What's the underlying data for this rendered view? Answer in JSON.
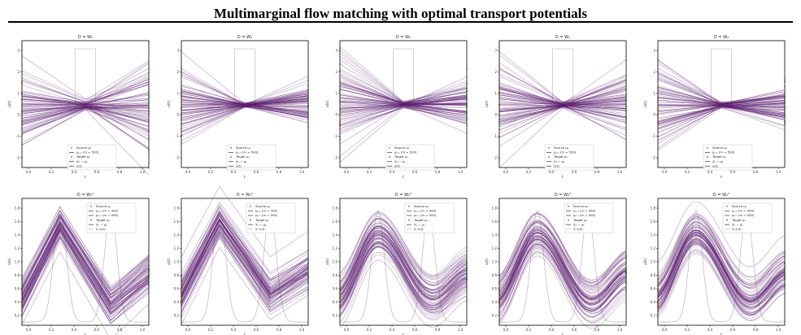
{
  "figure": {
    "title": "Multimarginal flow matching with optimal transport potentials"
  },
  "colors": {
    "path": "#5a1c6e",
    "source": "#e8712a",
    "target": "#3cb44b",
    "density": "#b8b8b8",
    "grid": "#cccccc"
  },
  "chart_data": [
    {
      "type": "line",
      "row": 0,
      "col": 0,
      "title": "D = W₂",
      "xlabel": "t",
      "ylabel": "x(t)",
      "xlim": [
        0,
        1
      ],
      "ylim": [
        -3.1,
        3.2
      ],
      "xticks": [
        "0.0",
        "0.2",
        "0.4",
        "0.6",
        "0.8",
        "1.0"
      ],
      "yticks": [
        "-2",
        "-1",
        "0",
        "1",
        "2",
        "3"
      ],
      "legend": [
        "Source μ₀",
        "μ₀.₅ (m = 500)",
        "Target μ₁",
        "X₁ − μ₁",
        "x(t)"
      ],
      "x": [
        0,
        0.5,
        1
      ],
      "mid_factor": 0.12,
      "end_factor": 1.15,
      "num_paths": 80
    },
    {
      "type": "line",
      "row": 0,
      "col": 1,
      "title": "D = W₂",
      "xlabel": "t",
      "ylabel": "x(t)",
      "xlim": [
        0,
        1
      ],
      "ylim": [
        -3.1,
        3.2
      ],
      "xticks": [
        "0.0",
        "0.2",
        "0.4",
        "0.6",
        "0.8",
        "1.0"
      ],
      "yticks": [
        "-2",
        "-1",
        "0",
        "1",
        "2",
        "3"
      ],
      "legend": [
        "Source μ₀",
        "μ₀.₅ (m = 500)",
        "Target μ₁",
        "X₁ − μ₁",
        "x(t)"
      ],
      "x": [
        0,
        0.5,
        1
      ],
      "mid_factor": 0.05,
      "end_factor": 0.6,
      "num_paths": 80
    },
    {
      "type": "line",
      "row": 0,
      "col": 2,
      "title": "D = W₂",
      "xlabel": "t",
      "ylabel": "x(t)",
      "xlim": [
        0,
        1
      ],
      "ylim": [
        -3.1,
        3.2
      ],
      "xticks": [
        "0.0",
        "0.2",
        "0.4",
        "0.6",
        "0.8",
        "1.0"
      ],
      "yticks": [
        "-2",
        "-1",
        "0",
        "1",
        "2",
        "3"
      ],
      "legend": [
        "Source μ₀",
        "μ₀.₅ (m = 500)",
        "Target μ₁",
        "X₁ − μ₁",
        "x(t)"
      ],
      "x": [
        0,
        0.5,
        1
      ],
      "mid_factor": 0.05,
      "end_factor": 0.6,
      "num_paths": 80
    },
    {
      "type": "line",
      "row": 0,
      "col": 3,
      "title": "D = W₂",
      "xlabel": "t",
      "ylabel": "x(t)",
      "xlim": [
        0,
        1
      ],
      "ylim": [
        -3.1,
        3.2
      ],
      "xticks": [
        "0.0",
        "0.2",
        "0.4",
        "0.6",
        "0.8",
        "1.0"
      ],
      "yticks": [
        "-2",
        "-1",
        "0",
        "1",
        "2",
        "3"
      ],
      "legend": [
        "Source μ₀",
        "μ₀.₅ (m = 500)",
        "Target μ₁",
        "X₁ − μ₁",
        "x(t)"
      ],
      "x": [
        0,
        0.5,
        1
      ],
      "mid_factor": 0.05,
      "end_factor": 0.9,
      "num_paths": 80
    },
    {
      "type": "line",
      "row": 0,
      "col": 4,
      "title": "D = W₂",
      "xlabel": "t",
      "ylabel": "x(t)",
      "xlim": [
        0,
        1
      ],
      "ylim": [
        -3.1,
        3.2
      ],
      "xticks": [
        "0.0",
        "0.2",
        "0.4",
        "0.6",
        "0.8",
        "1.0"
      ],
      "yticks": [
        "-2",
        "-1",
        "0",
        "1",
        "2",
        "3"
      ],
      "legend": [
        "Source μ₀",
        "μ₀.₅ (m = 500)",
        "Target μ₁",
        "X₁ − μ₁",
        "x(t)"
      ],
      "x": [
        0,
        0.5,
        1
      ],
      "mid_factor": 0.05,
      "end_factor": 0.6,
      "num_paths": 80
    },
    {
      "type": "line",
      "row": 1,
      "col": 0,
      "title": "D = W₂²",
      "xlabel": "t",
      "ylabel": "x(t)",
      "xlim": [
        0,
        1
      ],
      "ylim": [
        0.1,
        1.9
      ],
      "xticks": [
        "0.0",
        "0.2",
        "0.4",
        "0.6",
        "0.8",
        "1.0"
      ],
      "yticks": [
        "0.2",
        "0.4",
        "0.6",
        "0.8",
        "1.0",
        "1.2",
        "1.4",
        "1.6",
        "1.8"
      ],
      "legend": [
        "Source μ₀",
        "μ₀.₃ (m = 400)",
        "μ₀.₇ (m = 500)",
        "Target μ₁",
        "X₁ − μ₁",
        "Σᵢ λᵢ(t)"
      ],
      "x": [
        0,
        0.3,
        0.7,
        1
      ],
      "centers": [
        0.5,
        1.55,
        0.4,
        0.85
      ],
      "spread": 0.16,
      "smooth": false,
      "num_paths": 70
    },
    {
      "type": "line",
      "row": 1,
      "col": 1,
      "title": "D = W₂²",
      "xlabel": "t",
      "ylabel": "x(t)",
      "xlim": [
        0,
        1
      ],
      "ylim": [
        0.1,
        1.9
      ],
      "xticks": [
        "0.0",
        "0.2",
        "0.4",
        "0.6",
        "0.8",
        "1.0"
      ],
      "yticks": [
        "0.2",
        "0.4",
        "0.6",
        "0.8",
        "1.0",
        "1.2",
        "1.4",
        "1.6",
        "1.8"
      ],
      "legend": [
        "Source μ₀",
        "μ₀.₃ (m = 400)",
        "μ₀.₇ (m = 500)",
        "Target μ₁",
        "X₁ − μ₁",
        "Σᵢ λᵢ(t)"
      ],
      "x": [
        0,
        0.3,
        0.7,
        1
      ],
      "centers": [
        0.5,
        1.55,
        0.5,
        0.85
      ],
      "spread": 0.16,
      "smooth": false,
      "num_paths": 70
    },
    {
      "type": "line",
      "row": 1,
      "col": 2,
      "title": "D = W₂²",
      "xlabel": "t",
      "ylabel": "x(t)",
      "xlim": [
        0,
        1
      ],
      "ylim": [
        0.1,
        1.9
      ],
      "xticks": [
        "0.0",
        "0.2",
        "0.4",
        "0.6",
        "0.8",
        "1.0"
      ],
      "yticks": [
        "0.2",
        "0.4",
        "0.6",
        "0.8",
        "1.0",
        "1.2",
        "1.4",
        "1.6",
        "1.8"
      ],
      "legend": [
        "Source μ₀",
        "μ₀.₃ (m = 400)",
        "μ₀.₇ (m = 500)",
        "Target μ₁",
        "X₁ − μ₁",
        "Σᵢ λᵢ(t)"
      ],
      "x": [
        0,
        0.3,
        0.7,
        1
      ],
      "centers": [
        0.5,
        1.4,
        0.5,
        0.85
      ],
      "spread": 0.16,
      "smooth": true,
      "num_paths": 70
    },
    {
      "type": "line",
      "row": 1,
      "col": 3,
      "title": "D = W₂²",
      "xlabel": "t",
      "ylabel": "x(t)",
      "xlim": [
        0,
        1
      ],
      "ylim": [
        0.1,
        1.9
      ],
      "xticks": [
        "0.0",
        "0.2",
        "0.4",
        "0.6",
        "0.8",
        "1.0"
      ],
      "yticks": [
        "0.2",
        "0.4",
        "0.6",
        "0.8",
        "1.0",
        "1.2",
        "1.4",
        "1.6",
        "1.8"
      ],
      "legend": [
        "Source μ₀",
        "μ₀.₃ (m = 400)",
        "μ₀.₇ (m = 500)",
        "Target μ₁",
        "X₁ − μ₁",
        "Σᵢ λᵢ(t)"
      ],
      "x": [
        0,
        0.3,
        0.7,
        1
      ],
      "centers": [
        0.5,
        1.4,
        0.45,
        0.85
      ],
      "spread": 0.16,
      "smooth": true,
      "num_paths": 70
    },
    {
      "type": "line",
      "row": 1,
      "col": 4,
      "title": "D = W₂²",
      "xlabel": "t",
      "ylabel": "x(t)",
      "xlim": [
        0,
        1
      ],
      "ylim": [
        0.1,
        1.9
      ],
      "xticks": [
        "0.0",
        "0.2",
        "0.4",
        "0.6",
        "0.8",
        "1.0"
      ],
      "yticks": [
        "0.2",
        "0.4",
        "0.6",
        "0.8",
        "1.0",
        "1.2",
        "1.4",
        "1.6",
        "1.8"
      ],
      "legend": [
        "Source μ₀",
        "μ₀.₃ (m = 400)",
        "μ₀.₇ (m = 500)",
        "Target μ₁",
        "X₁ − μ₁",
        "Σᵢ λᵢ(t)"
      ],
      "x": [
        0,
        0.3,
        0.7,
        1
      ],
      "centers": [
        0.5,
        1.4,
        0.45,
        0.85
      ],
      "spread": 0.16,
      "smooth": true,
      "num_paths": 70
    }
  ]
}
